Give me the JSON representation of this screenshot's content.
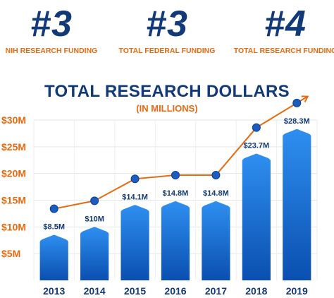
{
  "rankings": [
    {
      "number": "#3",
      "label": "NIH RESEARCH FUNDING"
    },
    {
      "number": "#3",
      "label": "TOTAL FEDERAL FUNDING"
    },
    {
      "number": "#4",
      "label": "TOTAL RESEARCH FUNDING"
    }
  ],
  "chart_data": {
    "type": "bar",
    "title": "TOTAL RESEARCH DOLLARS",
    "subtitle": "(IN MILLIONS)",
    "categories": [
      "2013",
      "2014",
      "2015",
      "2016",
      "2017",
      "2018",
      "2019"
    ],
    "values": [
      8.5,
      10,
      14.1,
      14.8,
      14.8,
      23.7,
      28.3
    ],
    "data_labels": [
      "$8.5M",
      "$10M",
      "$14.1M",
      "$14.8M",
      "$14.8M",
      "$23.7M",
      "$28.3M"
    ],
    "yticks": [
      {
        "value": 5,
        "label": "$5M"
      },
      {
        "value": 10,
        "label": "$10M"
      },
      {
        "value": 15,
        "label": "$15M"
      },
      {
        "value": 20,
        "label": "$20M"
      },
      {
        "value": 25,
        "label": "$25M"
      },
      {
        "value": 30,
        "label": "$30M"
      }
    ],
    "ylim": [
      0,
      30
    ],
    "grid": true,
    "overlay": "line",
    "colors": {
      "bar_top": "#2e8ff0",
      "bar_bottom": "#0a4fb0",
      "line": "#e86a10",
      "marker": "#1a5cc0"
    }
  }
}
